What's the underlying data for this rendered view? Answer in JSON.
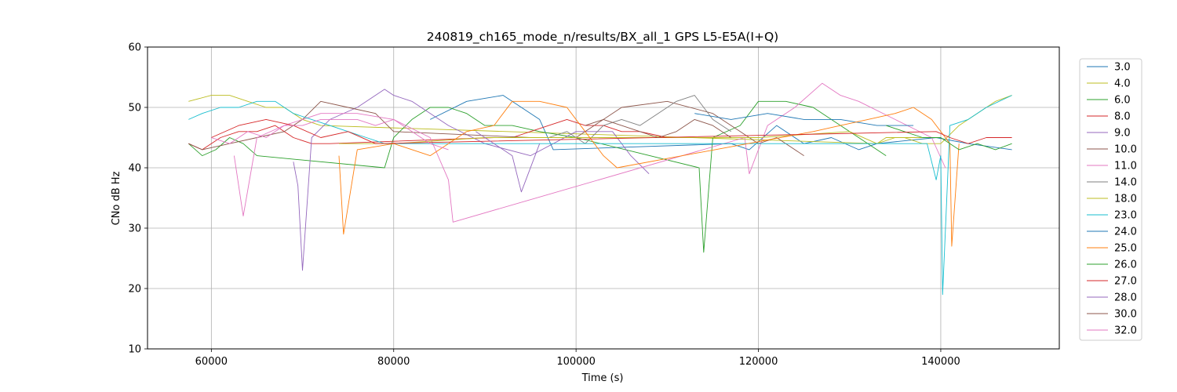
{
  "chart_data": {
    "type": "line",
    "title": "240819_ch165_mode_n/results/BX_all_1 GPS L5-E5A(I+Q)",
    "xlabel": "Time (s)",
    "ylabel": "CNo dB Hz",
    "xlim": [
      53000,
      153000
    ],
    "ylim": [
      10,
      60
    ],
    "xticks": [
      60000,
      80000,
      100000,
      120000,
      140000
    ],
    "xtick_labels": [
      "60000",
      "80000",
      "100000",
      "120000",
      "140000"
    ],
    "yticks": [
      10,
      20,
      30,
      40,
      50,
      60
    ],
    "ytick_labels": [
      "10",
      "20",
      "30",
      "40",
      "50",
      "60"
    ],
    "grid": true,
    "legend_position": "right, outside plot",
    "series": [
      {
        "name": "3.0",
        "color": "#1f77b4",
        "x": [
          84000,
          88000,
          92000,
          96000,
          97500,
          117000,
          119000,
          122000,
          125000,
          128000,
          131000,
          133000,
          139500,
          143000,
          147800
        ],
        "y": [
          48,
          51,
          52,
          48,
          43,
          44,
          43,
          47,
          44,
          45,
          43,
          44,
          45,
          44,
          43
        ]
      },
      {
        "name": "4.0",
        "color": "#bcbd22",
        "x": [
          57500,
          60000,
          62000,
          64000,
          66000,
          68000,
          70000,
          72000,
          133000,
          134000,
          136000,
          138000,
          140000,
          142000,
          144000,
          146000,
          147800
        ],
        "y": [
          51,
          52,
          52,
          51,
          50,
          50,
          48,
          47,
          44,
          45,
          45,
          44,
          44,
          47,
          49,
          51,
          52
        ]
      },
      {
        "name": "6.0",
        "color": "#2ca02c",
        "x": [
          57500,
          59000,
          60500,
          62000,
          63500,
          65000,
          79000,
          80000,
          82000,
          84000,
          86000,
          88000,
          90000,
          93000,
          96000,
          100000,
          113500,
          114000,
          115000,
          118000,
          120000,
          123000,
          126000,
          130000,
          134000
        ],
        "y": [
          44,
          42,
          43,
          45,
          44,
          42,
          40,
          45,
          48,
          50,
          50,
          49,
          47,
          47,
          46,
          45,
          40,
          26,
          45,
          47,
          51,
          51,
          50,
          46,
          42
        ]
      },
      {
        "name": "8.0",
        "color": "#d62728",
        "x": [
          57500,
          59000,
          61000,
          63000,
          65000,
          67000,
          69000,
          71000,
          73000,
          91000,
          93000,
          95000,
          97000,
          99000,
          101000,
          103000,
          105000,
          107000,
          110000
        ],
        "y": [
          44,
          43,
          45,
          46,
          46,
          47,
          45,
          44,
          44,
          45,
          45,
          46,
          47,
          48,
          47,
          47,
          46,
          46,
          45
        ]
      },
      {
        "name": "9.0",
        "color": "#9467bd",
        "x": [
          69000,
          69500,
          70000,
          71000,
          73000,
          76000,
          79000,
          80000,
          82000,
          86000,
          90000,
          95000,
          100000,
          104000,
          106000,
          108000
        ],
        "y": [
          41,
          37,
          23,
          45,
          48,
          50,
          53,
          52,
          51,
          47,
          44,
          42,
          46,
          46,
          42,
          39
        ]
      },
      {
        "name": "10.0",
        "color": "#8c564b",
        "x": [
          57500,
          59000,
          62000,
          65000,
          68000,
          70000,
          72000,
          75000,
          78000,
          80000,
          95000,
          100000,
          105000,
          110000,
          115000,
          118000,
          120000,
          122000,
          125000
        ],
        "y": [
          44,
          43,
          44,
          45,
          46,
          48,
          51,
          50,
          49,
          46,
          45,
          45,
          50,
          51,
          49,
          46,
          44,
          45,
          42
        ]
      },
      {
        "name": "11.0",
        "color": "#e377c2",
        "x": [
          62500,
          63500,
          65000,
          68000,
          72000,
          76000,
          80000,
          84000,
          86000,
          86500,
          118500,
          119000,
          121000,
          124000,
          127000,
          129000,
          131000,
          135000,
          139000,
          140500
        ],
        "y": [
          42,
          32,
          45,
          47,
          49,
          49,
          48,
          45,
          38,
          31,
          45,
          39,
          47,
          50,
          54,
          52,
          51,
          48,
          45,
          40
        ]
      },
      {
        "name": "14.0",
        "color": "#7f7f7f",
        "x": [
          97000,
          99000,
          101000,
          103000,
          105000,
          107000,
          109000,
          111000,
          113000,
          115000,
          117000
        ],
        "y": [
          45,
          46,
          44,
          47,
          48,
          47,
          49,
          51,
          52,
          48,
          46
        ]
      },
      {
        "name": "18.0",
        "color": "#bcbd22",
        "x": [
          74000,
          80000,
          90000,
          100000,
          110000,
          120000,
          130000,
          133000,
          135000,
          138000
        ],
        "y": [
          44,
          44,
          45,
          45,
          45,
          45,
          46,
          44,
          45,
          45
        ]
      },
      {
        "name": "23.0",
        "color": "#17becf",
        "x": [
          57500,
          59000,
          61000,
          63000,
          65000,
          67000,
          69000,
          71000,
          73000,
          75000,
          77000,
          79000,
          138500,
          139500,
          140000,
          140200,
          141000,
          143000,
          145000,
          147800
        ],
        "y": [
          48,
          49,
          50,
          50,
          51,
          51,
          49,
          48,
          47,
          46,
          45,
          44,
          44,
          38,
          42,
          19,
          47,
          48,
          50,
          52
        ]
      },
      {
        "name": "24.0",
        "color": "#1f77b4",
        "x": [
          113000,
          117000,
          121000,
          125000,
          129000,
          133000,
          137000
        ],
        "y": [
          49,
          48,
          49,
          48,
          48,
          47,
          47
        ]
      },
      {
        "name": "25.0",
        "color": "#ff7f0e",
        "x": [
          74000,
          74500,
          76000,
          80000,
          84000,
          86000,
          88000,
          91000,
          93000,
          96000,
          99000,
          101000,
          103000,
          104500,
          126000,
          129000,
          132000,
          135000,
          137000,
          139000,
          141000,
          141200,
          142000
        ],
        "y": [
          42,
          29,
          43,
          44,
          42,
          44,
          46,
          47,
          51,
          51,
          50,
          46,
          42,
          40,
          46,
          47,
          48,
          49,
          50,
          48,
          44,
          27,
          44
        ]
      },
      {
        "name": "26.0",
        "color": "#2ca02c",
        "x": [
          134000,
          136000,
          138000,
          140000,
          142000,
          144000,
          146000,
          147800
        ],
        "y": [
          47,
          46,
          45,
          45,
          43,
          44,
          43,
          44
        ]
      },
      {
        "name": "27.0",
        "color": "#d62728",
        "x": [
          60000,
          63000,
          66000,
          69000,
          72000,
          75000,
          78000,
          139500,
          141000,
          143000,
          145000,
          147800
        ],
        "y": [
          45,
          47,
          48,
          47,
          45,
          46,
          44,
          46,
          45,
          44,
          45,
          45
        ]
      },
      {
        "name": "28.0",
        "color": "#9467bd",
        "x": [
          89000,
          91000,
          92000,
          93000,
          94000,
          96000
        ],
        "y": [
          46,
          44,
          43,
          42,
          36,
          44
        ]
      },
      {
        "name": "30.0",
        "color": "#8c564b",
        "x": [
          101000,
          103000,
          105000,
          107000,
          109000,
          111000,
          113000,
          115000,
          117000
        ],
        "y": [
          47,
          48,
          47,
          46,
          45,
          46,
          48,
          47,
          45
        ]
      },
      {
        "name": "32.0",
        "color": "#e377c2",
        "x": [
          60000,
          62000,
          64000,
          66000,
          68000,
          70000,
          72000,
          74000,
          76000,
          78000,
          80000,
          82000,
          84000,
          86000
        ],
        "y": [
          45,
          44,
          46,
          45,
          47,
          47,
          48,
          48,
          48,
          47,
          48,
          46,
          44,
          43
        ]
      }
    ]
  }
}
